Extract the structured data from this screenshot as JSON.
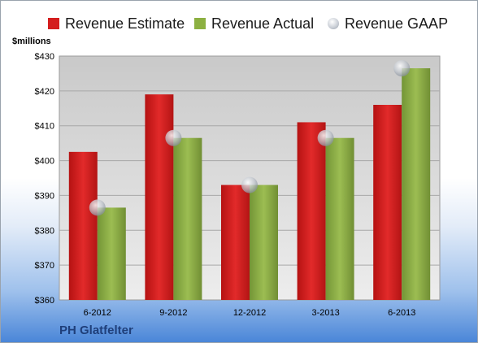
{
  "chart_data": {
    "type": "bar",
    "title": "",
    "ylabel": "$millions",
    "ylim": [
      360,
      430
    ],
    "yticks": [
      "$360",
      "$370",
      "$380",
      "$390",
      "$400",
      "$410",
      "$420",
      "$430"
    ],
    "yticks_values": [
      360,
      370,
      380,
      390,
      400,
      410,
      420,
      430
    ],
    "categories": [
      "6-2012",
      "9-2012",
      "12-2012",
      "3-2013",
      "6-2013"
    ],
    "series": [
      {
        "name": "Revenue Estimate",
        "values": [
          402.5,
          419,
          393,
          411,
          416
        ],
        "color": "#d41e1e",
        "kind": "bar"
      },
      {
        "name": "Revenue Actual",
        "values": [
          386.5,
          406.5,
          393,
          406.5,
          426.5
        ],
        "color": "#8cb041",
        "kind": "bar"
      },
      {
        "name": "Revenue GAAP",
        "values": [
          386.5,
          406.5,
          393,
          406.5,
          426.5
        ],
        "color": "#c7ccd4",
        "kind": "dot"
      }
    ],
    "grid": true,
    "legend_position": "top"
  },
  "footer": {
    "company": "PH Glatfelter"
  },
  "colors": {
    "estimate": "#d41e1e",
    "actual": "#8cb041",
    "gaap": "#c7ccd4"
  }
}
